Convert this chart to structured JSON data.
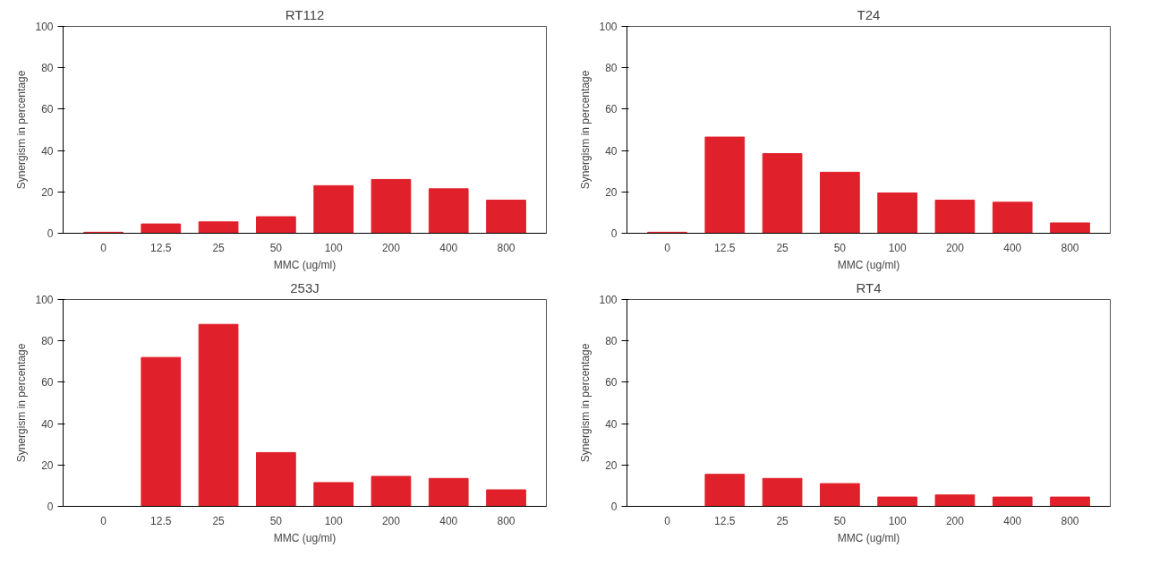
{
  "chart_data": [
    {
      "type": "bar",
      "title": "RT112",
      "xlabel": "MMC (ug/ml)",
      "ylabel": "Synergism in percentage",
      "categories": [
        "0",
        "12.5",
        "25",
        "50",
        "100",
        "200",
        "400",
        "800"
      ],
      "values": [
        0.5,
        4.5,
        5.5,
        8,
        23,
        26,
        21.5,
        16
      ],
      "color": "#e0202a",
      "ylim": [
        0,
        100
      ],
      "yticks": [
        0,
        20,
        40,
        60,
        80,
        100
      ],
      "grid": false
    },
    {
      "type": "bar",
      "title": "T24",
      "xlabel": "MMC (ug/ml)",
      "ylabel": "Synergism in percentage",
      "categories": [
        "0",
        "12.5",
        "25",
        "50",
        "100",
        "200",
        "400",
        "800"
      ],
      "values": [
        0.5,
        46.5,
        38.5,
        29.5,
        19.5,
        16,
        15,
        5
      ],
      "color": "#e0202a",
      "ylim": [
        0,
        100
      ],
      "yticks": [
        0,
        20,
        40,
        60,
        80,
        100
      ],
      "grid": false
    },
    {
      "type": "bar",
      "title": "253J",
      "xlabel": "MMC (ug/ml)",
      "ylabel": "Synergism in percentage",
      "categories": [
        "0",
        "12.5",
        "25",
        "50",
        "100",
        "200",
        "400",
        "800"
      ],
      "values": [
        0,
        72,
        88,
        26,
        11.5,
        14.5,
        13.5,
        8
      ],
      "color": "#e0202a",
      "ylim": [
        0,
        100
      ],
      "yticks": [
        0,
        20,
        40,
        60,
        80,
        100
      ],
      "grid": false
    },
    {
      "type": "bar",
      "title": "RT4",
      "xlabel": "MMC (ug/ml)",
      "ylabel": "Synergism in percentage",
      "categories": [
        "0",
        "12.5",
        "25",
        "50",
        "100",
        "200",
        "400",
        "800"
      ],
      "values": [
        0,
        15.5,
        13.5,
        11,
        4.5,
        5.5,
        4.5,
        4.5
      ],
      "color": "#e0202a",
      "ylim": [
        0,
        100
      ],
      "yticks": [
        0,
        20,
        40,
        60,
        80,
        100
      ],
      "grid": false
    }
  ]
}
